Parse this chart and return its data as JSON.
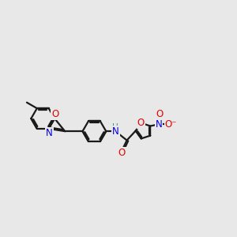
{
  "bg_color": "#e8e8e8",
  "bond_color": "#1a1a1a",
  "N_color": "#0000ee",
  "O_color": "#ee0000",
  "NH_color": "#3a8f8f",
  "line_width": 1.6,
  "figsize": [
    3.0,
    3.0
  ],
  "dpi": 100,
  "xlim": [
    -4.8,
    5.5
  ],
  "ylim": [
    -2.5,
    2.5
  ]
}
